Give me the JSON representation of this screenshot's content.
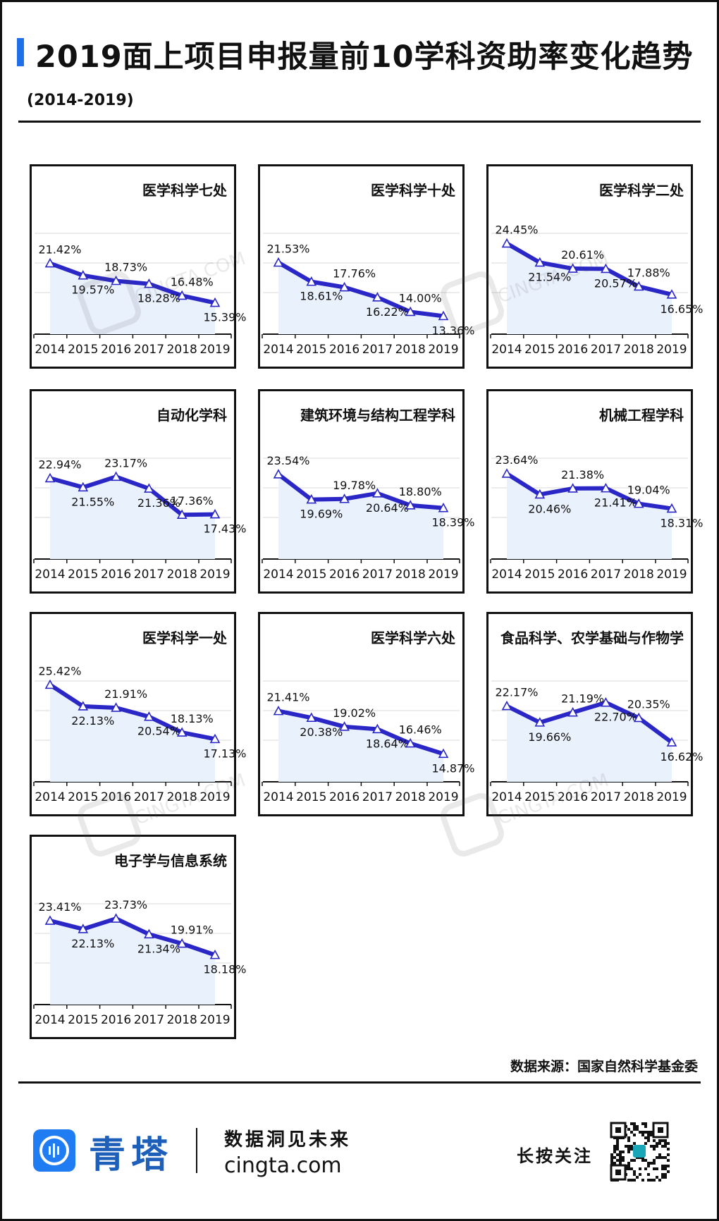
{
  "header": {
    "title": "2019面上项目申报量前10学科资助率变化趋势",
    "subtitle": "(2014-2019)"
  },
  "colors": {
    "accent": "#1f6fe8",
    "line": "#2a27c6",
    "area": "#e9f1fd",
    "grid": "#d8d8d8"
  },
  "chart_data": [
    {
      "type": "line",
      "title": "医学科学七处",
      "categories": [
        "2014",
        "2015",
        "2016",
        "2017",
        "2018",
        "2019"
      ],
      "values": [
        21.42,
        19.57,
        18.73,
        18.28,
        16.48,
        15.39
      ],
      "labels": [
        "21.42%",
        "19.57%",
        "18.73%",
        "18.28%",
        "16.48%",
        "15.39%"
      ]
    },
    {
      "type": "line",
      "title": "医学科学十处",
      "categories": [
        "2014",
        "2015",
        "2016",
        "2017",
        "2018",
        "2019"
      ],
      "values": [
        21.53,
        18.61,
        17.76,
        16.22,
        14.0,
        13.36
      ],
      "labels": [
        "21.53%",
        "18.61%",
        "17.76%",
        "16.22%",
        "14.00%",
        "13.36%"
      ]
    },
    {
      "type": "line",
      "title": "医学科学二处",
      "categories": [
        "2014",
        "2015",
        "2016",
        "2017",
        "2018",
        "2019"
      ],
      "values": [
        24.45,
        21.54,
        20.61,
        20.57,
        17.88,
        16.65
      ],
      "labels": [
        "24.45%",
        "21.54%",
        "20.61%",
        "20.57%",
        "17.88%",
        "16.65%"
      ]
    },
    {
      "type": "line",
      "title": "自动化学科",
      "categories": [
        "2014",
        "2015",
        "2016",
        "2017",
        "2018",
        "2019"
      ],
      "values": [
        22.94,
        21.55,
        23.17,
        21.36,
        17.36,
        17.43
      ],
      "labels": [
        "22.94%",
        "21.55%",
        "23.17%",
        "21.36%",
        "17.36%",
        "17.43%"
      ]
    },
    {
      "type": "line",
      "title": "建筑环境与结构工程学科",
      "categories": [
        "2014",
        "2015",
        "2016",
        "2017",
        "2018",
        "2019"
      ],
      "values": [
        23.54,
        19.69,
        19.78,
        20.64,
        18.8,
        18.39
      ],
      "labels": [
        "23.54%",
        "19.69%",
        "19.78%",
        "20.64%",
        "18.80%",
        "18.39%"
      ]
    },
    {
      "type": "line",
      "title": "机械工程学科",
      "categories": [
        "2014",
        "2015",
        "2016",
        "2017",
        "2018",
        "2019"
      ],
      "values": [
        23.64,
        20.46,
        21.38,
        21.41,
        19.04,
        18.31
      ],
      "labels": [
        "23.64%",
        "20.46%",
        "21.38%",
        "21.41%",
        "19.04%",
        "18.31%"
      ]
    },
    {
      "type": "line",
      "title": "医学科学一处",
      "categories": [
        "2014",
        "2015",
        "2016",
        "2017",
        "2018",
        "2019"
      ],
      "values": [
        25.42,
        22.13,
        21.91,
        20.54,
        18.13,
        17.13
      ],
      "labels": [
        "25.42%",
        "22.13%",
        "21.91%",
        "20.54%",
        "18.13%",
        "17.13%"
      ]
    },
    {
      "type": "line",
      "title": "医学科学六处",
      "categories": [
        "2014",
        "2015",
        "2016",
        "2017",
        "2018",
        "2019"
      ],
      "values": [
        21.41,
        20.38,
        19.02,
        18.64,
        16.46,
        14.87
      ],
      "labels": [
        "21.41%",
        "20.38%",
        "19.02%",
        "18.64%",
        "16.46%",
        "14.87%"
      ]
    },
    {
      "type": "line",
      "title": "食品科学、农学基础与作物学",
      "categories": [
        "2014",
        "2015",
        "2016",
        "2017",
        "2018",
        "2019"
      ],
      "values": [
        22.17,
        19.66,
        21.19,
        22.7,
        20.35,
        16.62
      ],
      "labels": [
        "22.17%",
        "19.66%",
        "21.19%",
        "22.70%",
        "20.35%",
        "16.62%"
      ]
    },
    {
      "type": "line",
      "title": "电子学与信息系统",
      "categories": [
        "2014",
        "2015",
        "2016",
        "2017",
        "2018",
        "2019"
      ],
      "values": [
        23.41,
        22.13,
        23.73,
        21.34,
        19.91,
        18.18
      ],
      "labels": [
        "23.41%",
        "22.13%",
        "23.73%",
        "21.34%",
        "19.91%",
        "18.18%"
      ]
    }
  ],
  "footer": {
    "source": "数据来源：国家自然科学基金委",
    "brand": "青塔",
    "slogan": "数据洞见未来",
    "site": "cingta.com",
    "follow": "长按关注",
    "watermark_text": "CINGTA.COM"
  }
}
